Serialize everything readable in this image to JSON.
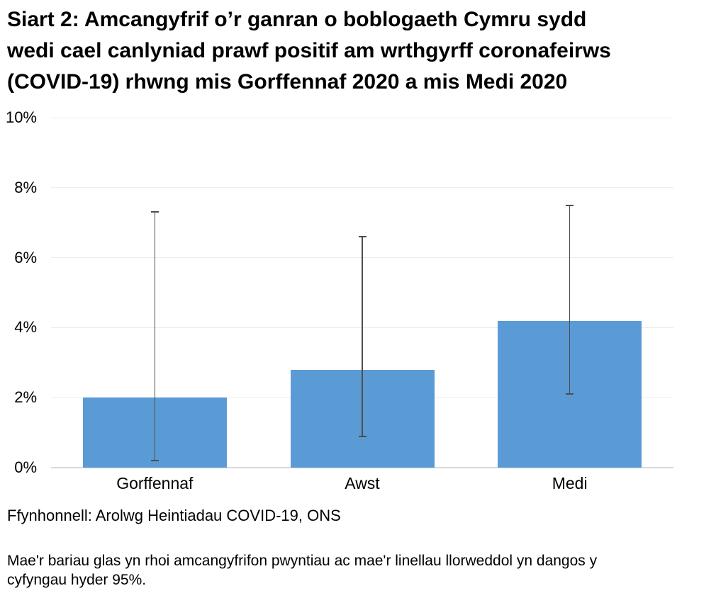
{
  "title_lines": [
    "Siart 2: Amcangyfrif o’r ganran o boblogaeth Cymru sydd",
    "wedi cael canlyniad prawf positif am wrthgyrff coronafeirws",
    "(COVID-19) rhwng mis Gorffennaf 2020 a mis Medi 2020"
  ],
  "source": "Ffynhonnell: Arolwg Heintiadau COVID-19, ONS",
  "note_lines": [
    "Mae'r bariau glas yn rhoi amcangyfrifon pwyntiau ac mae'r linellau llorweddol yn dangos y",
    "cyfyngau hyder 95%."
  ],
  "chart_data": {
    "type": "bar",
    "title": "Siart 2: Amcangyfrif o’r ganran o boblogaeth Cymru sydd wedi cael canlyniad prawf positif am wrthgyrff coronafeirws (COVID-19) rhwng mis Gorffennaf 2020 a mis Medi 2020",
    "categories": [
      "Gorffennaf",
      "Awst",
      "Medi"
    ],
    "series": [
      {
        "name": "Amcangyfrifon pwyntiau (bariau glas)",
        "values": [
          2.0,
          2.8,
          4.2
        ]
      }
    ],
    "error_bars": {
      "label": "Cyfyngau hyder 95%",
      "low": [
        0.2,
        0.9,
        2.1
      ],
      "high": [
        7.3,
        6.6,
        7.5
      ]
    },
    "xlabel": "",
    "ylabel": "",
    "yticks": [
      0,
      2,
      4,
      6,
      8,
      10
    ],
    "ytick_labels": [
      "0%",
      "2%",
      "4%",
      "6%",
      "8%",
      "10%"
    ],
    "ylim": [
      0,
      10
    ],
    "grid": "horizontal",
    "legend_position": "none",
    "bar_color": "#5B9BD5",
    "error_bar_color": "#4D4D4D",
    "gridline_color": "#ECECEC",
    "axis_line_color": "#D9D9D9"
  }
}
